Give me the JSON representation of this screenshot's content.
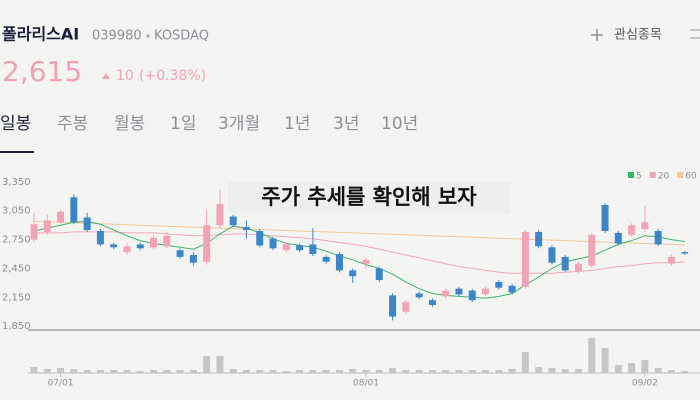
{
  "header": {
    "name": "폴라리스AI",
    "code": "039980",
    "market": "KOSDAQ",
    "watchlist": "관심종목"
  },
  "price": {
    "value": "2,615",
    "change": "10",
    "change_pct": "(+0.38%)"
  },
  "tabs": [
    "일봉",
    "주봉",
    "월봉",
    "1일",
    "3개월",
    "1년",
    "3년",
    "10년"
  ],
  "overlay": "주가 추세를 확인해 보자",
  "chart_data": {
    "type": "candlestick",
    "categories": [
      null,
      null,
      "07/01",
      null,
      null,
      null,
      null,
      null,
      null,
      null,
      null,
      null,
      null,
      null,
      null,
      null,
      null,
      null,
      null,
      null,
      null,
      null,
      null,
      null,
      null,
      "08/01",
      null,
      null,
      null,
      null,
      null,
      null,
      null,
      null,
      null,
      null,
      null,
      null,
      null,
      null,
      null,
      null,
      null,
      null,
      null,
      null,
      "09/02",
      null,
      null,
      null
    ],
    "open": [
      2760,
      2840,
      2940,
      3200,
      2990,
      2850,
      2710,
      2630,
      2710,
      2680,
      2690,
      2650,
      2600,
      2530,
      2910,
      3000,
      2890,
      2850,
      2770,
      2650,
      2700,
      2710,
      2580,
      2610,
      2440,
      2510,
      2460,
      2180,
      2010,
      2200,
      2130,
      2170,
      2250,
      2230,
      2190,
      2320,
      2280,
      2270,
      2840,
      2680,
      2580,
      2430,
      2490,
      3120,
      2830,
      2810,
      2870,
      2850,
      2510,
      2630
    ],
    "high": [
      3040,
      3020,
      3070,
      3230,
      3040,
      2870,
      2730,
      2730,
      2730,
      2800,
      2840,
      2670,
      2630,
      3070,
      3280,
      3020,
      2960,
      2870,
      2790,
      2730,
      2720,
      2880,
      2600,
      2630,
      2460,
      2570,
      2480,
      2200,
      2130,
      2220,
      2150,
      2250,
      2270,
      2250,
      2270,
      2340,
      2300,
      2860,
      2860,
      2700,
      2600,
      2530,
      2830,
      3140,
      2850,
      2930,
      3110,
      2870,
      2600,
      2640
    ],
    "low": [
      2740,
      2810,
      2920,
      2920,
      2840,
      2690,
      2660,
      2600,
      2650,
      2660,
      2670,
      2560,
      2490,
      2500,
      2880,
      2890,
      2770,
      2680,
      2650,
      2630,
      2630,
      2590,
      2510,
      2420,
      2310,
      2460,
      2320,
      1920,
      1990,
      2140,
      2060,
      2150,
      2170,
      2110,
      2170,
      2240,
      2190,
      2250,
      2670,
      2500,
      2420,
      2410,
      2470,
      2830,
      2700,
      2790,
      2840,
      2690,
      2490,
      2600
    ],
    "close": [
      2920,
      2960,
      3050,
      2940,
      2860,
      2710,
      2680,
      2690,
      2670,
      2780,
      2800,
      2580,
      2520,
      2910,
      3130,
      2910,
      2860,
      2700,
      2670,
      2710,
      2650,
      2610,
      2530,
      2440,
      2380,
      2550,
      2340,
      1960,
      2110,
      2160,
      2080,
      2230,
      2190,
      2130,
      2250,
      2260,
      2210,
      2840,
      2690,
      2520,
      2440,
      2510,
      2810,
      2850,
      2720,
      2910,
      2940,
      2710,
      2580,
      2615
    ],
    "up_color": "#f2a3b6",
    "down_color": "#3a86c8",
    "ylim": [
      1820,
      3505
    ],
    "yticks": [
      {
        "value": 3350,
        "label": "3,350"
      },
      {
        "value": 3050,
        "label": "3,050"
      },
      {
        "value": 2750,
        "label": "2,750"
      },
      {
        "value": 2450,
        "label": "2,450"
      },
      {
        "value": 2150,
        "label": "2,150"
      },
      {
        "value": 1850,
        "label": "1,850"
      }
    ],
    "moving_averages": [
      {
        "name": "5",
        "color": "#3cb46e",
        "values": [
          2850,
          2880,
          2910,
          2940,
          2950,
          2920,
          2860,
          2800,
          2750,
          2720,
          2700,
          2680,
          2660,
          2720,
          2820,
          2900,
          2880,
          2830,
          2770,
          2720,
          2700,
          2680,
          2640,
          2590,
          2550,
          2500,
          2460,
          2400,
          2320,
          2250,
          2200,
          2180,
          2170,
          2160,
          2150,
          2170,
          2200,
          2290,
          2370,
          2460,
          2530,
          2560,
          2590,
          2650,
          2710,
          2750,
          2800,
          2790,
          2760,
          2740
        ]
      },
      {
        "name": "20",
        "color": "#f0a7b8",
        "values": [
          2830,
          2830,
          2830,
          2840,
          2840,
          2840,
          2840,
          2830,
          2830,
          2830,
          2820,
          2810,
          2800,
          2800,
          2810,
          2820,
          2820,
          2810,
          2800,
          2790,
          2780,
          2770,
          2750,
          2730,
          2710,
          2690,
          2660,
          2630,
          2600,
          2570,
          2540,
          2510,
          2480,
          2460,
          2440,
          2420,
          2410,
          2410,
          2410,
          2410,
          2420,
          2430,
          2440,
          2460,
          2480,
          2490,
          2510,
          2520,
          2520,
          2530
        ]
      },
      {
        "name": "60",
        "color": "#f2c79a",
        "values": [
          2950,
          2945,
          2940,
          2935,
          2930,
          2925,
          2920,
          2915,
          2910,
          2905,
          2900,
          2895,
          2890,
          2885,
          2880,
          2875,
          2870,
          2865,
          2860,
          2855,
          2850,
          2845,
          2840,
          2835,
          2830,
          2825,
          2820,
          2815,
          2810,
          2805,
          2800,
          2795,
          2790,
          2785,
          2780,
          2775,
          2770,
          2765,
          2760,
          2755,
          2750,
          2745,
          2740,
          2735,
          2730,
          2725,
          2720,
          2715,
          2710,
          2705
        ]
      }
    ],
    "volume": {
      "color": "#c4c6c9",
      "values": [
        6,
        4,
        5,
        4,
        3,
        3,
        3,
        3,
        2,
        3,
        3,
        3,
        3,
        17,
        17,
        4,
        3,
        3,
        3,
        2,
        3,
        3,
        3,
        3,
        4,
        3,
        3,
        5,
        3,
        3,
        3,
        3,
        3,
        3,
        3,
        3,
        4,
        21,
        6,
        5,
        4,
        4,
        35,
        25,
        8,
        10,
        13,
        5,
        3,
        2
      ]
    }
  }
}
